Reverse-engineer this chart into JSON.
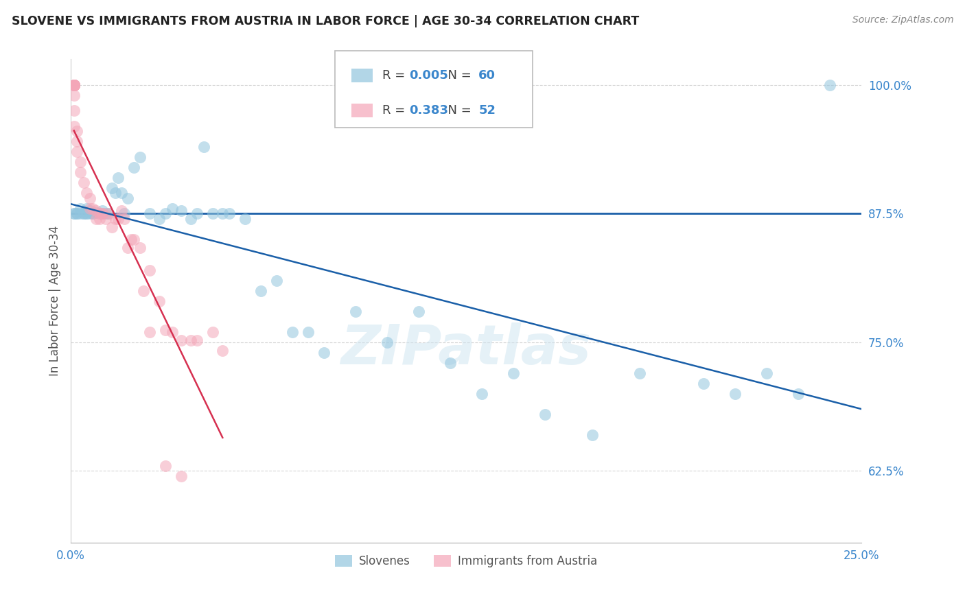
{
  "title": "SLOVENE VS IMMIGRANTS FROM AUSTRIA IN LABOR FORCE | AGE 30-34 CORRELATION CHART",
  "source": "Source: ZipAtlas.com",
  "ylabel": "In Labor Force | Age 30-34",
  "watermark": "ZIPatlas",
  "blue_R": "0.005",
  "blue_N": "60",
  "pink_R": "0.383",
  "pink_N": "52",
  "blue_color": "#92c5de",
  "pink_color": "#f4a6b8",
  "trendline_blue_color": "#1a5fa8",
  "trendline_pink_color": "#d63050",
  "hline_color": "#1a5fa8",
  "hline_y": 0.875,
  "xlim": [
    0.0,
    0.25
  ],
  "ylim": [
    0.555,
    1.025
  ],
  "x_ticks": [
    0.0,
    0.05,
    0.1,
    0.15,
    0.2,
    0.25
  ],
  "x_tick_labels": [
    "0.0%",
    "",
    "",
    "",
    "",
    "25.0%"
  ],
  "y_ticks": [
    0.625,
    0.75,
    0.875,
    1.0
  ],
  "y_tick_labels": [
    "62.5%",
    "75.0%",
    "87.5%",
    "100.0%"
  ],
  "blue_x": [
    0.001,
    0.001,
    0.002,
    0.002,
    0.003,
    0.003,
    0.004,
    0.004,
    0.005,
    0.005,
    0.005,
    0.006,
    0.006,
    0.007,
    0.007,
    0.008,
    0.009,
    0.01,
    0.01,
    0.011,
    0.012,
    0.013,
    0.014,
    0.015,
    0.016,
    0.017,
    0.018,
    0.02,
    0.022,
    0.025,
    0.028,
    0.03,
    0.032,
    0.035,
    0.038,
    0.04,
    0.042,
    0.045,
    0.048,
    0.05,
    0.055,
    0.06,
    0.065,
    0.07,
    0.075,
    0.08,
    0.09,
    0.1,
    0.11,
    0.12,
    0.13,
    0.14,
    0.15,
    0.165,
    0.18,
    0.2,
    0.21,
    0.22,
    0.23,
    0.24
  ],
  "blue_y": [
    0.875,
    0.875,
    0.875,
    0.875,
    0.875,
    0.88,
    0.875,
    0.875,
    0.875,
    0.875,
    0.88,
    0.875,
    0.878,
    0.875,
    0.875,
    0.876,
    0.875,
    0.875,
    0.878,
    0.875,
    0.875,
    0.9,
    0.895,
    0.91,
    0.895,
    0.875,
    0.89,
    0.92,
    0.93,
    0.875,
    0.87,
    0.875,
    0.88,
    0.878,
    0.87,
    0.875,
    0.94,
    0.875,
    0.875,
    0.875,
    0.87,
    0.8,
    0.81,
    0.76,
    0.76,
    0.74,
    0.78,
    0.75,
    0.78,
    0.73,
    0.7,
    0.72,
    0.68,
    0.66,
    0.72,
    0.71,
    0.7,
    0.72,
    0.7,
    1.0
  ],
  "pink_x": [
    0.001,
    0.001,
    0.001,
    0.001,
    0.001,
    0.001,
    0.001,
    0.001,
    0.001,
    0.001,
    0.001,
    0.001,
    0.002,
    0.002,
    0.002,
    0.003,
    0.003,
    0.004,
    0.005,
    0.006,
    0.006,
    0.007,
    0.008,
    0.008,
    0.009,
    0.009,
    0.01,
    0.01,
    0.011,
    0.012,
    0.013,
    0.014,
    0.015,
    0.016,
    0.017,
    0.018,
    0.019,
    0.02,
    0.022,
    0.023,
    0.025,
    0.028,
    0.03,
    0.032,
    0.035,
    0.038,
    0.04,
    0.045,
    0.048,
    0.025,
    0.03,
    0.035
  ],
  "pink_y": [
    1.0,
    1.0,
    1.0,
    1.0,
    1.0,
    1.0,
    1.0,
    1.0,
    1.0,
    0.99,
    0.975,
    0.96,
    0.955,
    0.945,
    0.935,
    0.925,
    0.915,
    0.905,
    0.895,
    0.89,
    0.88,
    0.88,
    0.878,
    0.87,
    0.875,
    0.87,
    0.875,
    0.875,
    0.87,
    0.875,
    0.862,
    0.87,
    0.87,
    0.878,
    0.87,
    0.842,
    0.85,
    0.85,
    0.842,
    0.8,
    0.82,
    0.79,
    0.762,
    0.76,
    0.752,
    0.752,
    0.752,
    0.76,
    0.742,
    0.76,
    0.63,
    0.62
  ]
}
